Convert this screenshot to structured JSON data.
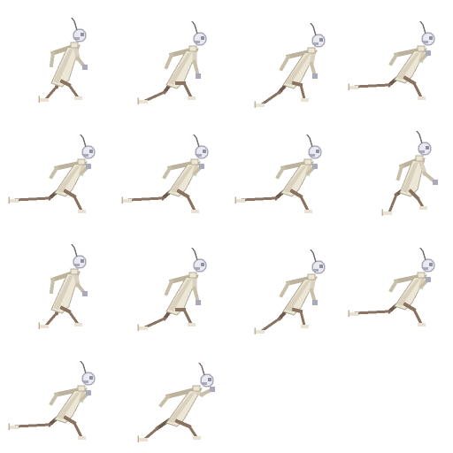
{
  "spritesheet": {
    "description_visible_text": "",
    "frame_count": 14,
    "grid": {
      "columns": 4,
      "rows": 4
    },
    "palette": {
      "background": "#ffffff",
      "robe_light": "#ece6d6",
      "robe_mid": "#d9d1bd",
      "robe_shadow": "#bdb39c",
      "leg": "#8a7461",
      "leg_dark": "#6f5b4b",
      "foot": "#e8e2d2",
      "head": "#e9e9f0",
      "head_shade": "#a9a9bb",
      "visor": "#8f8fa6",
      "antenna": "#7b6c72",
      "arm": "#c8bfa8",
      "outline": "#b5ad98"
    },
    "frames": [
      {
        "name": "run-frame-01",
        "pose": "lean-stride-a"
      },
      {
        "name": "run-frame-02",
        "pose": "lean-stride-b"
      },
      {
        "name": "run-frame-03",
        "pose": "lean-stride-c"
      },
      {
        "name": "run-frame-04",
        "pose": "extended-stride"
      },
      {
        "name": "run-frame-05",
        "pose": "extended-stride"
      },
      {
        "name": "run-frame-06",
        "pose": "extended-stride"
      },
      {
        "name": "run-frame-07",
        "pose": "extended-stride"
      },
      {
        "name": "run-frame-08",
        "pose": "upright-crouch"
      },
      {
        "name": "run-frame-09",
        "pose": "lean-stride-a"
      },
      {
        "name": "run-frame-10",
        "pose": "lean-stride-b"
      },
      {
        "name": "run-frame-11",
        "pose": "lean-stride-c"
      },
      {
        "name": "run-frame-12",
        "pose": "extended-stride"
      },
      {
        "name": "run-frame-13",
        "pose": "extended-stride"
      },
      {
        "name": "run-frame-14",
        "pose": "sprint-pump"
      }
    ]
  }
}
